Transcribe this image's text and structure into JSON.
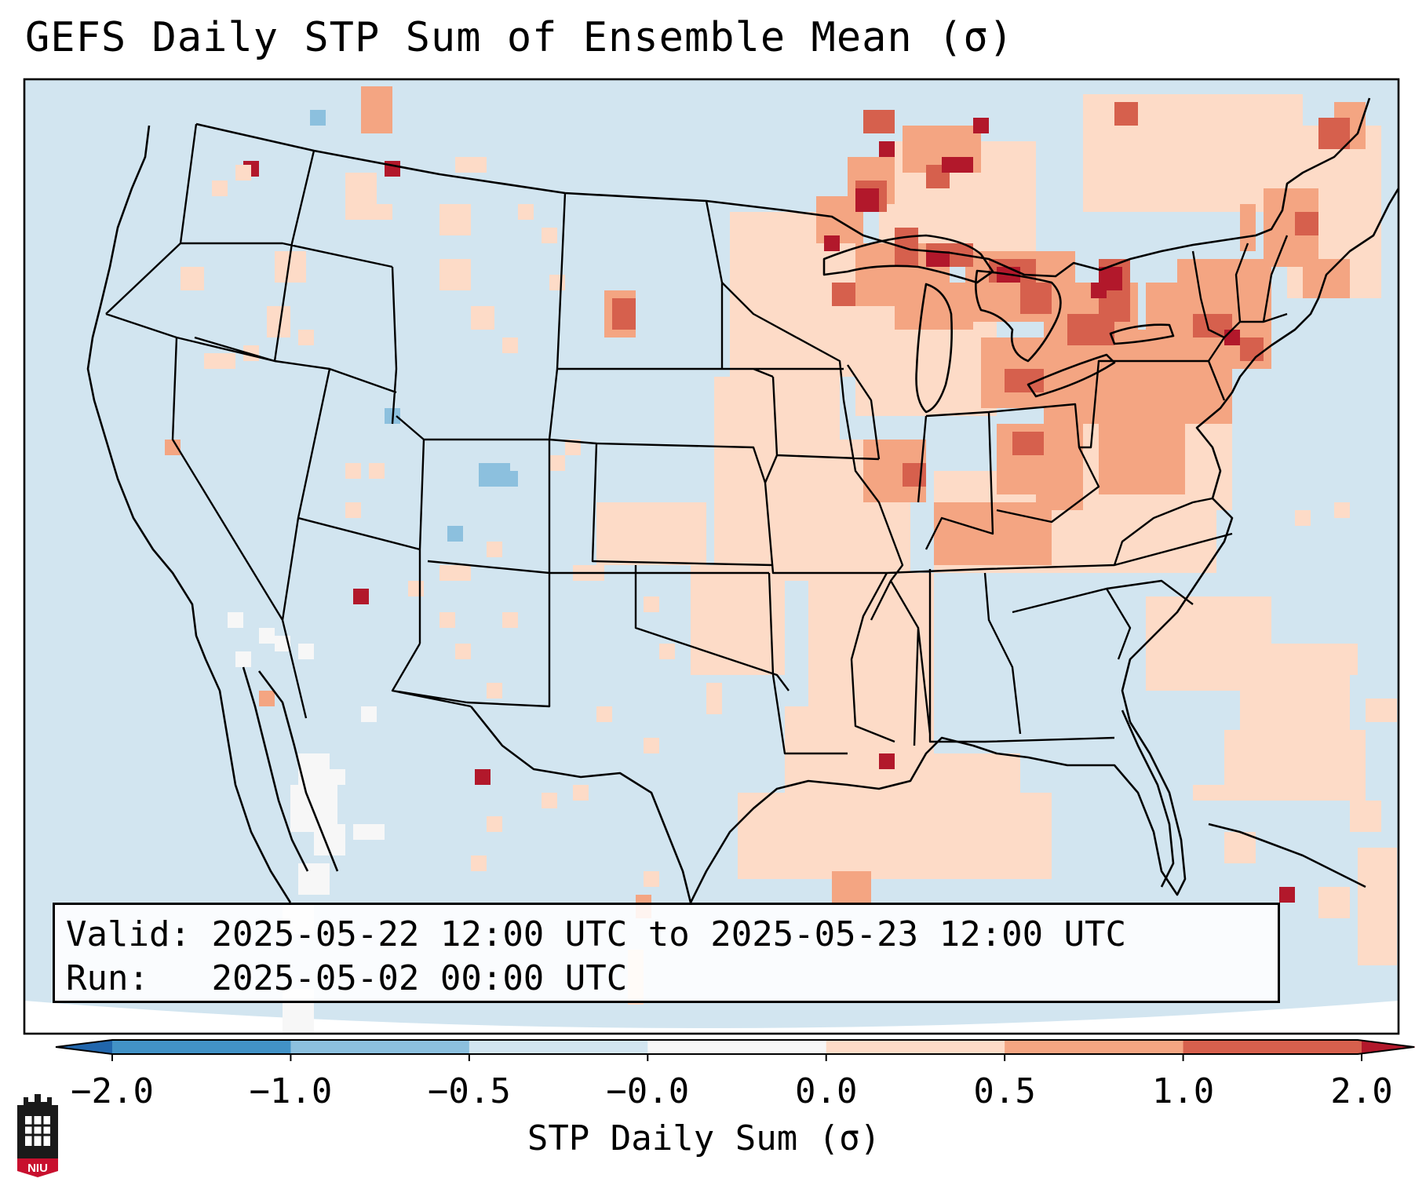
{
  "title": "GEFS Daily STP Sum of Ensemble Mean (σ)",
  "info": {
    "valid_label": "Valid:",
    "valid_text": "2025-05-22 12:00 UTC to 2025-05-23 12:00 UTC",
    "run_label": "Run:",
    "run_text": "2025-05-02 00:00 UTC"
  },
  "colorbar": {
    "label": "STP Daily Sum (σ)",
    "ticks": [
      "−2.0",
      "−1.0",
      "−0.5",
      "−0.0",
      "0.0",
      "0.5",
      "1.0",
      "2.0"
    ],
    "bins": [
      {
        "range": "-2.0 to -1.0",
        "color": "#4292c6"
      },
      {
        "range": "-1.0 to -0.5",
        "color": "#8cc0de"
      },
      {
        "range": "-0.5 to -0.0",
        "color": "#d2e5f0"
      },
      {
        "range": "-0.0 to 0.0",
        "color": "#f7f7f7"
      },
      {
        "range": "0.0 to 0.5",
        "color": "#fddbc7"
      },
      {
        "range": "0.5 to 1.0",
        "color": "#f4a582"
      },
      {
        "range": "1.0 to 2.0",
        "color": "#d6604d"
      }
    ],
    "under_color": "#2166ac",
    "over_color": "#b2182b"
  },
  "map_colors": {
    "background": "#d2e5f0",
    "light_red": "#fddbc7",
    "medium_red": "#f4a582",
    "strong_red": "#d6604d",
    "extreme_red": "#b2182b",
    "neutral": "#f7f7f7",
    "light_blue": "#8cc0de"
  },
  "logo": {
    "text": "NIU"
  }
}
